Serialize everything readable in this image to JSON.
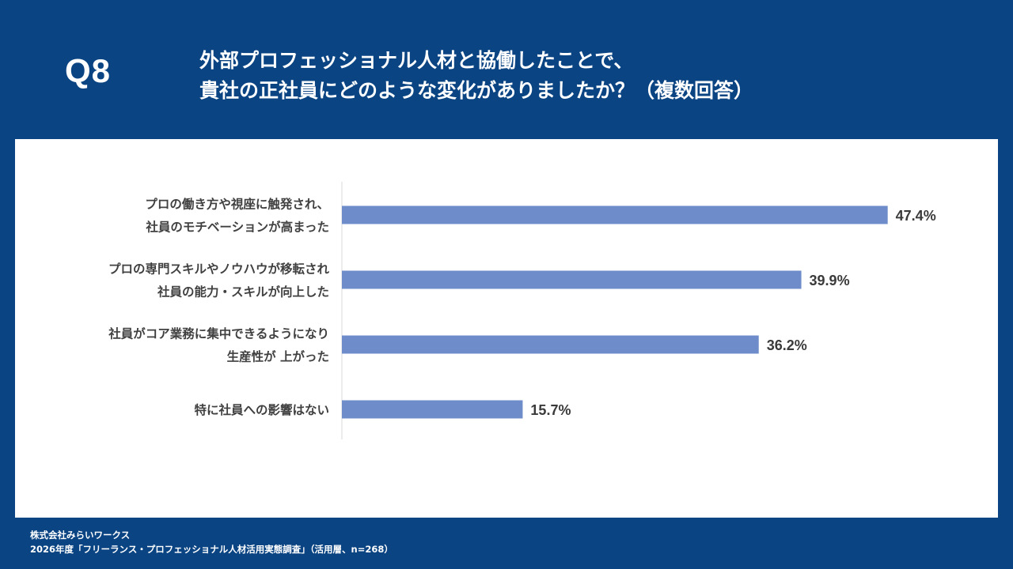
{
  "header": {
    "question_no": "Q8",
    "title_line1": "外部プロフェッショナル人材と協働したことで、",
    "title_line2": "貴社の正社員にどのような変化がありましたか？（複数回答）"
  },
  "chart_data": {
    "type": "bar",
    "orientation": "horizontal",
    "categories": [
      [
        "プロの働き方や視座に触発され、",
        "社員のモチベーションが高まった"
      ],
      [
        "プロの専門スキルやノウハウが移転され",
        "社員の能力・スキルが向上した"
      ],
      [
        "社員がコア業務に集中できるようになり",
        "生産性が 上がった"
      ],
      [
        "特に社員への影響はない"
      ]
    ],
    "values": [
      47.4,
      39.9,
      36.2,
      15.7
    ],
    "value_labels": [
      "47.4%",
      "39.9%",
      "36.2%",
      "15.7%"
    ],
    "xlim": [
      0,
      50
    ],
    "grid": false,
    "legend": "none",
    "bar_color": "#6d8cc9"
  },
  "footer": {
    "company": "株式会社みらいワークス",
    "source": "2026年度「フリーランス・プロフェッショナル人材活用実態調査」（活用層、n=268）"
  }
}
